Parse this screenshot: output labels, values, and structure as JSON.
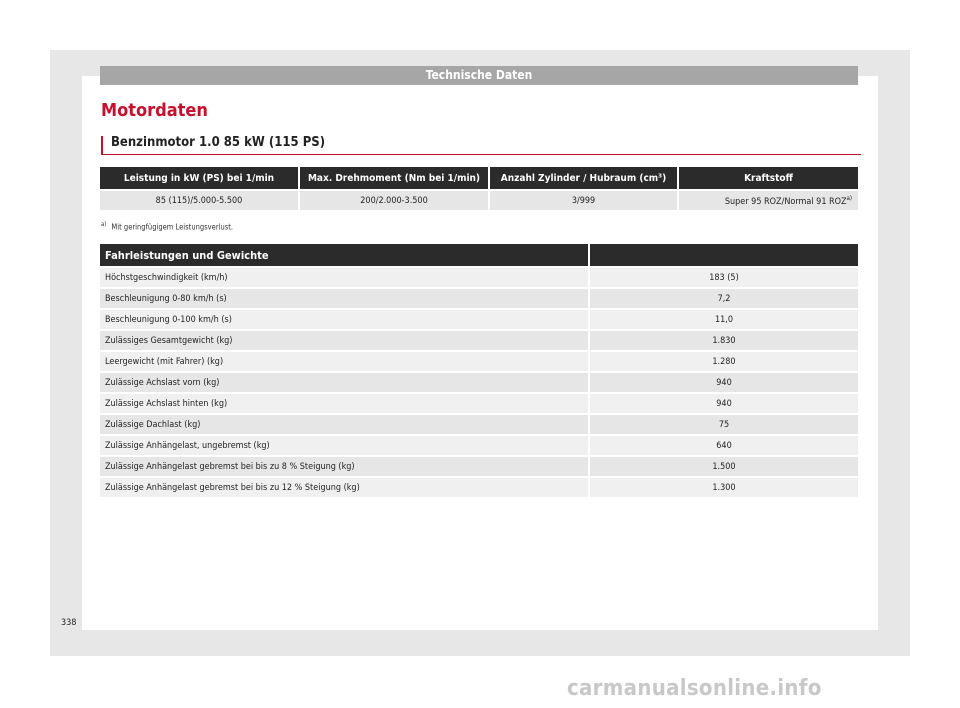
{
  "header": {
    "section": "Technische Daten"
  },
  "title": "Motordaten",
  "subtitle": "Benzinmotor 1.0 85 kW (115 PS)",
  "engine_table": {
    "headers": [
      "Leistung in kW (PS) bei 1/min",
      "Max. Drehmoment (Nm bei 1/min)",
      "Anzahl Zylinder / Hubraum (cm³)",
      "Kraftstoff"
    ],
    "row": [
      "85 (115)/5.000-5.500",
      "200/2.000-3.500",
      "3/999",
      "Super 95 ROZ/Normal 91 ROZ"
    ],
    "fuel_footnote_mark": "a)"
  },
  "footnote": {
    "mark": "a)",
    "text": "Mit geringfügigem Leistungsverlust."
  },
  "performance_table": {
    "header": "Fahrleistungen und Gewichte",
    "rows": [
      [
        "Höchstgeschwindigkeit (km/h)",
        "183 (5)"
      ],
      [
        "Beschleunigung 0-80 km/h (s)",
        "7,2"
      ],
      [
        "Beschleunigung 0-100 km/h (s)",
        "11,0"
      ],
      [
        "Zulässiges Gesamtgewicht (kg)",
        "1.830"
      ],
      [
        "Leergewicht (mit Fahrer) (kg)",
        "1.280"
      ],
      [
        "Zulässige Achslast vorn (kg)",
        "940"
      ],
      [
        "Zulässige Achslast hinten (kg)",
        "940"
      ],
      [
        "Zulässige Dachlast (kg)",
        "75"
      ],
      [
        "Zulässige Anhängelast, ungebremst (kg)",
        "640"
      ],
      [
        "Zulässige Anhängelast gebremst bei bis zu 8 % Steigung (kg)",
        "1.500"
      ],
      [
        "Zulässige Anhängelast gebremst bei bis zu 12 % Steigung (kg)",
        "1.300"
      ]
    ]
  },
  "page_number": "338",
  "watermark": "carmanualsonline.info",
  "colors": {
    "accent": "#c8102e",
    "header_dark": "#2b2b2b",
    "header_bar": "#a6a6a6"
  }
}
